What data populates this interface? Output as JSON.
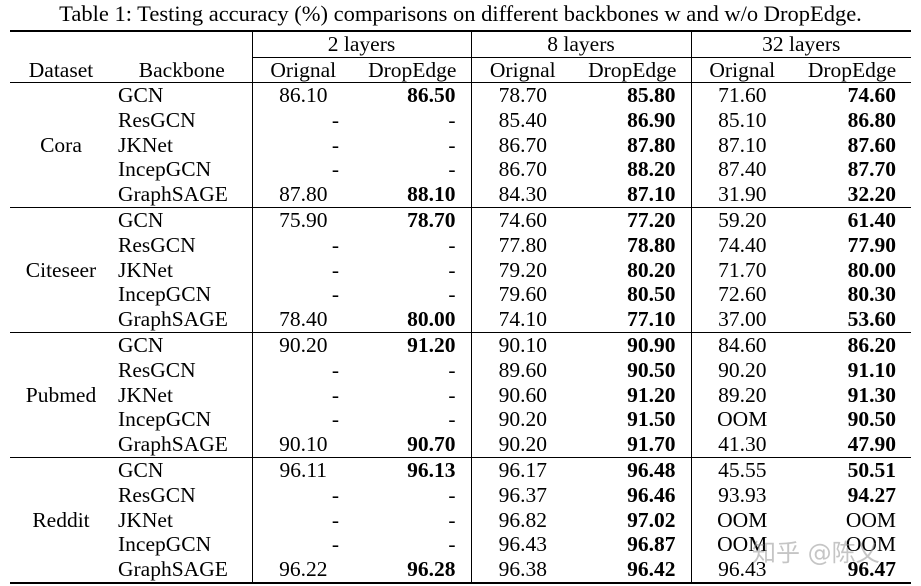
{
  "caption": "Table 1: Testing accuracy (%) comparisons on different backbones w and w/o DropEdge.",
  "headers": {
    "dataset": "Dataset",
    "backbone": "Backbone",
    "groups": [
      "2 layers",
      "8 layers",
      "32 layers"
    ],
    "sub": [
      "Orignal",
      "DropEdge"
    ]
  },
  "datasets": [
    {
      "name": "Cora",
      "rows": [
        {
          "backbone": "GCN",
          "values": [
            "86.10",
            "86.50",
            "78.70",
            "85.80",
            "71.60",
            "74.60"
          ]
        },
        {
          "backbone": "ResGCN",
          "values": [
            "-",
            "-",
            "85.40",
            "86.90",
            "85.10",
            "86.80"
          ]
        },
        {
          "backbone": "JKNet",
          "values": [
            "-",
            "-",
            "86.70",
            "87.80",
            "87.10",
            "87.60"
          ]
        },
        {
          "backbone": "IncepGCN",
          "values": [
            "-",
            "-",
            "86.70",
            "88.20",
            "87.40",
            "87.70"
          ]
        },
        {
          "backbone": "GraphSAGE",
          "values": [
            "87.80",
            "88.10",
            "84.30",
            "87.10",
            "31.90",
            "32.20"
          ]
        }
      ]
    },
    {
      "name": "Citeseer",
      "rows": [
        {
          "backbone": "GCN",
          "values": [
            "75.90",
            "78.70",
            "74.60",
            "77.20",
            "59.20",
            "61.40"
          ]
        },
        {
          "backbone": "ResGCN",
          "values": [
            "-",
            "-",
            "77.80",
            "78.80",
            "74.40",
            "77.90"
          ]
        },
        {
          "backbone": "JKNet",
          "values": [
            "-",
            "-",
            "79.20",
            "80.20",
            "71.70",
            "80.00"
          ]
        },
        {
          "backbone": "IncepGCN",
          "values": [
            "-",
            "-",
            "79.60",
            "80.50",
            "72.60",
            "80.30"
          ]
        },
        {
          "backbone": "GraphSAGE",
          "values": [
            "78.40",
            "80.00",
            "74.10",
            "77.10",
            "37.00",
            "53.60"
          ]
        }
      ]
    },
    {
      "name": "Pubmed",
      "rows": [
        {
          "backbone": "GCN",
          "values": [
            "90.20",
            "91.20",
            "90.10",
            "90.90",
            "84.60",
            "86.20"
          ]
        },
        {
          "backbone": "ResGCN",
          "values": [
            "-",
            "-",
            "89.60",
            "90.50",
            "90.20",
            "91.10"
          ]
        },
        {
          "backbone": "JKNet",
          "values": [
            "-",
            "-",
            "90.60",
            "91.20",
            "89.20",
            "91.30"
          ]
        },
        {
          "backbone": "IncepGCN",
          "values": [
            "-",
            "-",
            "90.20",
            "91.50",
            "OOM",
            "90.50"
          ]
        },
        {
          "backbone": "GraphSAGE",
          "values": [
            "90.10",
            "90.70",
            "90.20",
            "91.70",
            "41.30",
            "47.90"
          ]
        }
      ]
    },
    {
      "name": "Reddit",
      "rows": [
        {
          "backbone": "GCN",
          "values": [
            "96.11",
            "96.13",
            "96.17",
            "96.48",
            "45.55",
            "50.51"
          ]
        },
        {
          "backbone": "ResGCN",
          "values": [
            "-",
            "-",
            "96.37",
            "96.46",
            "93.93",
            "94.27"
          ]
        },
        {
          "backbone": "JKNet",
          "values": [
            "-",
            "-",
            "96.82",
            "97.02",
            "OOM",
            "OOM"
          ]
        },
        {
          "backbone": "IncepGCN",
          "values": [
            "-",
            "-",
            "96.43",
            "96.87",
            "OOM",
            "OOM"
          ]
        },
        {
          "backbone": "GraphSAGE",
          "values": [
            "96.22",
            "96.28",
            "96.38",
            "96.42",
            "96.43",
            "96.47"
          ]
        }
      ]
    }
  ],
  "watermark": "知乎 @陈乂"
}
